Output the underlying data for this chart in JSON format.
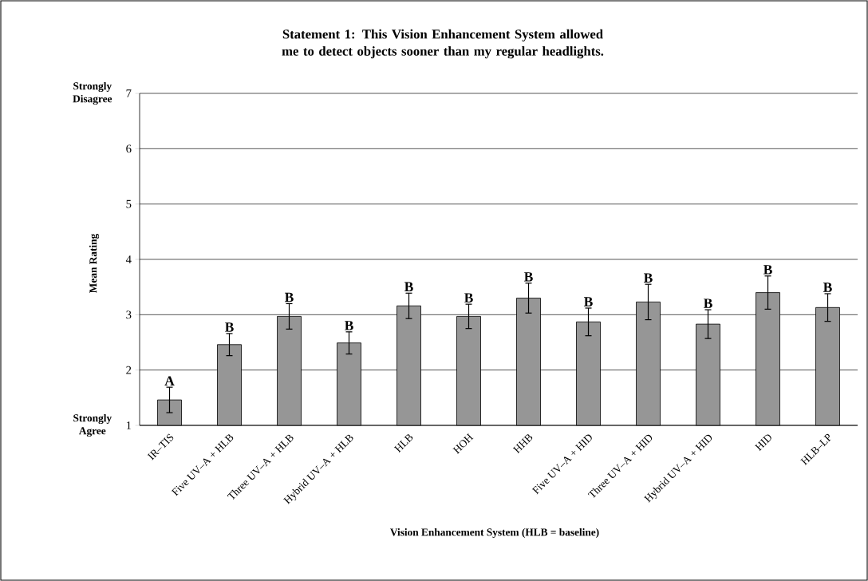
{
  "chart_data": {
    "type": "bar",
    "title": "Statement 1:  This Vision Enhancement System allowed me to detect objects sooner than my regular headlights.",
    "xlabel": "Vision Enhancement System (HLB = baseline)",
    "ylabel": "Mean Rating",
    "categories": [
      "IR–TIS",
      "Five UV–A + HLB",
      "Three UV–A + HLB",
      "Hybrid UV–A + HLB",
      "HLB",
      "HOH",
      "HHB",
      "Five UV–A + HID",
      "Three UV–A + HID",
      "Hybrid UV–A + HID",
      "HID",
      "HLB–LP"
    ],
    "values": [
      1.46,
      2.46,
      2.97,
      2.49,
      3.16,
      2.97,
      3.3,
      2.87,
      3.23,
      2.83,
      3.4,
      3.13
    ],
    "errors": [
      0.23,
      0.2,
      0.23,
      0.2,
      0.23,
      0.22,
      0.27,
      0.25,
      0.32,
      0.26,
      0.3,
      0.25
    ],
    "color": "#969696",
    "ylim": [
      1,
      7
    ],
    "yticks": [
      1,
      2,
      3,
      4,
      5,
      6,
      7
    ],
    "grid": "y",
    "annotations": [
      "Strongly Agree",
      "Strongly Disagree",
      {
        "text": "A",
        "x": "IR–TIS",
        "y": 1.69
      },
      {
        "text": "B",
        "x": "Five UV–A + HLB",
        "y": 2.66
      },
      {
        "text": "B",
        "x": "Three UV–A + HLB",
        "y": 3.2
      },
      {
        "text": "B",
        "x": "Hybrid UV–A + HLB",
        "y": 2.69
      },
      {
        "text": "B",
        "x": "HLB",
        "y": 3.39
      },
      {
        "text": "B",
        "x": "HOH",
        "y": 3.19
      },
      {
        "text": "B",
        "x": "HHB",
        "y": 3.57
      },
      {
        "text": "B",
        "x": "Five UV–A + HID",
        "y": 3.12
      },
      {
        "text": "B",
        "x": "Three UV–A + HID",
        "y": 3.55
      },
      {
        "text": "B",
        "x": "Hybrid UV–A + HID",
        "y": 3.09
      },
      {
        "text": "B",
        "x": "HID",
        "y": 3.7
      },
      {
        "text": "B",
        "x": "HLB–LP",
        "y": 3.38
      }
    ]
  }
}
